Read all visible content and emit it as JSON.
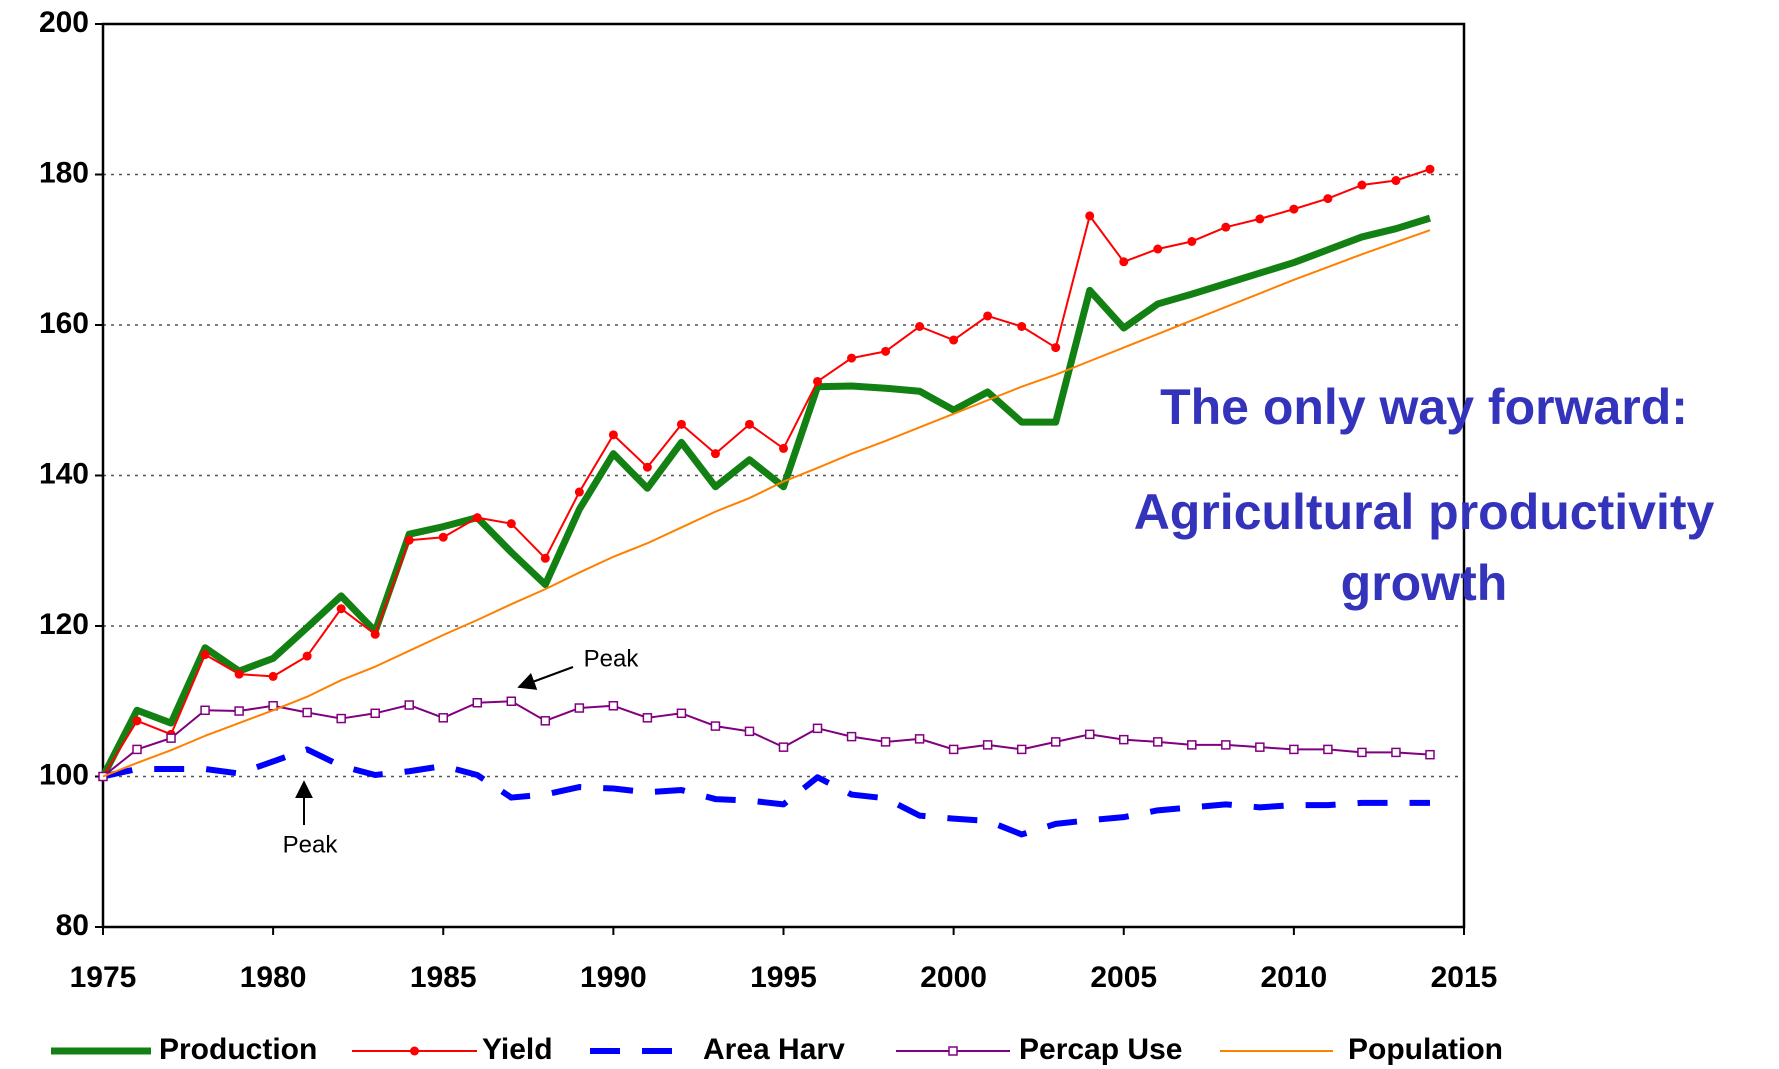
{
  "chart_data": {
    "type": "line",
    "x": [
      1975,
      1976,
      1977,
      1978,
      1979,
      1980,
      1981,
      1982,
      1983,
      1984,
      1985,
      1986,
      1987,
      1988,
      1989,
      1990,
      1991,
      1992,
      1993,
      1994,
      1995,
      1996,
      1997,
      1998,
      1999,
      2000,
      2001,
      2002,
      2003,
      2004,
      2005,
      2006,
      2007,
      2008,
      2009,
      2010,
      2011,
      2012,
      2013,
      2014
    ],
    "series": [
      {
        "name": "Production",
        "color": "#138013",
        "width": 7,
        "values": [
          100,
          108.8,
          107.1,
          117.1,
          114,
          115.7,
          119.8,
          124,
          119.3,
          132.2,
          133.2,
          134.4,
          129.8,
          125.5,
          135.5,
          142.9,
          138.3,
          144.4,
          138.5,
          142.1,
          138.5,
          151.8,
          151.9,
          151.6,
          151.2,
          148.7,
          151.1,
          147.1,
          147.1,
          164.6,
          159.6,
          162.8,
          164.1,
          165.5,
          166.9,
          168.3,
          170,
          171.7,
          172.8,
          174.2
        ]
      },
      {
        "name": "Yield",
        "color": "#ff0000",
        "width": 2,
        "marker": "circle",
        "values": [
          100,
          107.4,
          105.6,
          116.2,
          113.6,
          113.3,
          116,
          122.3,
          118.9,
          131.4,
          131.8,
          134.4,
          133.6,
          129,
          137.8,
          145.4,
          141.1,
          146.8,
          142.9,
          146.8,
          143.6,
          152.5,
          155.6,
          156.5,
          159.8,
          158,
          161.2,
          159.8,
          157,
          174.5,
          168.4,
          170.1,
          171.1,
          173,
          174.1,
          175.4,
          176.8,
          178.6,
          179.2,
          180.7
        ]
      },
      {
        "name": "Area Harv",
        "color": "#0000ff",
        "width": 6,
        "dash": "30 22",
        "values": [
          100,
          101,
          101,
          101,
          100.4,
          102,
          103.6,
          101.4,
          100.2,
          100.7,
          101.4,
          100.2,
          97.2,
          97.6,
          98.6,
          98.4,
          97.9,
          98.2,
          97,
          96.8,
          96.3,
          99.9,
          97.6,
          97.1,
          94.8,
          94.4,
          94.1,
          92.3,
          93.7,
          94.2,
          94.6,
          95.5,
          95.9,
          96.3,
          95.9,
          96.2,
          96.2,
          96.5,
          96.5,
          96.5
        ]
      },
      {
        "name": "Percap Use",
        "color": "#800080",
        "width": 2,
        "marker": "square",
        "values": [
          100,
          103.6,
          105.1,
          108.8,
          108.7,
          109.4,
          108.5,
          107.7,
          108.4,
          109.5,
          107.8,
          109.8,
          110,
          107.4,
          109.1,
          109.4,
          107.8,
          108.4,
          106.7,
          106,
          103.9,
          106.4,
          105.3,
          104.6,
          105,
          103.6,
          104.2,
          103.6,
          104.6,
          105.6,
          104.9,
          104.6,
          104.2,
          104.2,
          103.9,
          103.6,
          103.6,
          103.2,
          103.2,
          102.9
        ]
      },
      {
        "name": "Population",
        "color": "#ff8000",
        "width": 2,
        "values": [
          100,
          101.8,
          103.5,
          105.4,
          107.1,
          108.8,
          110.6,
          112.8,
          114.6,
          116.7,
          118.8,
          120.8,
          122.9,
          124.9,
          127.1,
          129.2,
          131,
          133.1,
          135.2,
          137,
          139.2,
          141,
          142.9,
          144.6,
          146.4,
          148.2,
          150,
          151.8,
          153.4,
          155.2,
          157,
          158.8,
          160.6,
          162.4,
          164.2,
          166,
          167.7,
          169.4,
          171,
          172.6
        ]
      }
    ],
    "xlim": [
      1975,
      2015
    ],
    "xticks": [
      1975,
      1980,
      1985,
      1990,
      1995,
      2000,
      2005,
      2010,
      2015
    ],
    "ylim": [
      80,
      200
    ],
    "yticks": [
      80,
      100,
      120,
      140,
      160,
      180,
      200
    ],
    "grid": true,
    "legend": "bottom",
    "annotations": [
      "Peak",
      "Peak",
      "The only way forward:",
      "Agricultural productivity",
      "growth"
    ]
  }
}
